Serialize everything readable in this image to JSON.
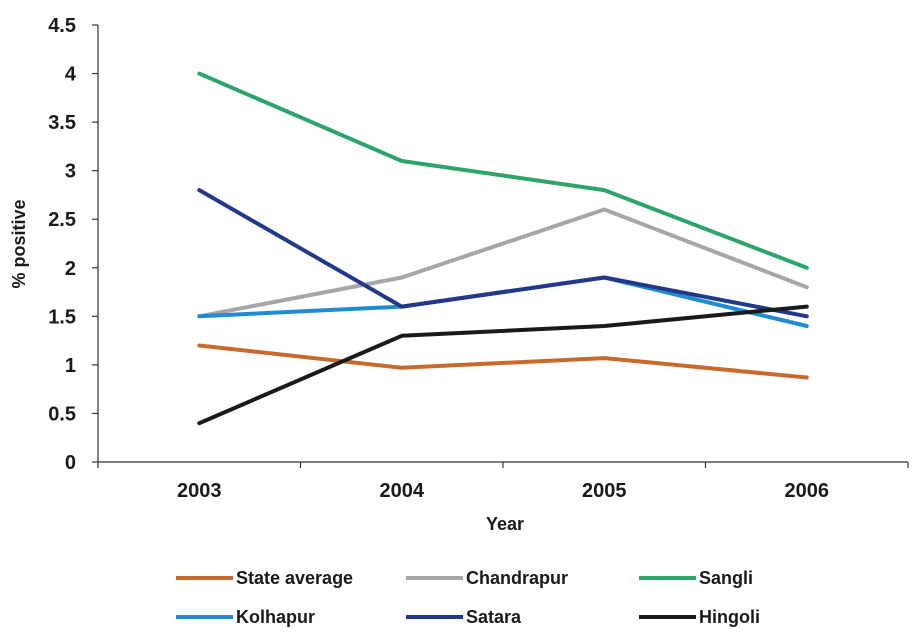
{
  "chart_data": {
    "type": "line",
    "xlabel": "Year",
    "ylabel": "% positive",
    "categories": [
      "2003",
      "2004",
      "2005",
      "2006"
    ],
    "ylim": [
      0,
      4.5
    ],
    "yticks": [
      "0",
      "0.5",
      "1",
      "1.5",
      "2",
      "2.5",
      "3",
      "3.5",
      "4",
      "4.5"
    ],
    "grid": false,
    "legend_position": "bottom",
    "series": [
      {
        "name": "State average",
        "color": "#c8692d",
        "values": [
          1.2,
          0.97,
          1.07,
          0.87
        ]
      },
      {
        "name": "Chandrapur",
        "color": "#a6a6a6",
        "values": [
          1.5,
          1.9,
          2.6,
          1.8
        ]
      },
      {
        "name": "Sangli",
        "color": "#2ca46a",
        "values": [
          4.0,
          3.1,
          2.8,
          2.0
        ]
      },
      {
        "name": "Kolhapur",
        "color": "#1f8ccf",
        "values": [
          1.5,
          1.6,
          1.9,
          1.4
        ]
      },
      {
        "name": "Satara",
        "color": "#22398a",
        "values": [
          2.8,
          1.6,
          1.9,
          1.5
        ]
      },
      {
        "name": "Hingoli",
        "color": "#1a1a1a",
        "values": [
          0.4,
          1.3,
          1.4,
          1.6
        ]
      }
    ]
  }
}
